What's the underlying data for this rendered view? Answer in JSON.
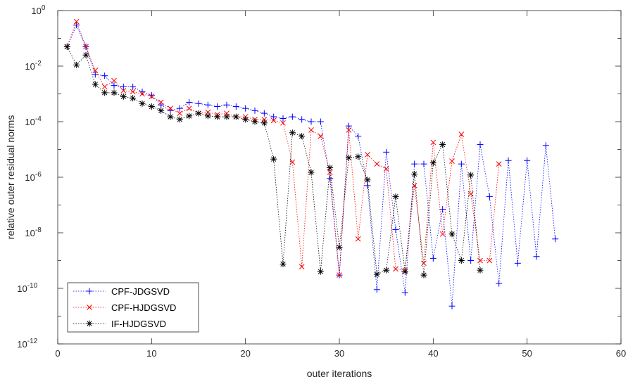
{
  "chart_data": {
    "type": "line",
    "xlabel": "outer iterations",
    "ylabel": "relative outer residual norms",
    "xlim": [
      0,
      60
    ],
    "ylim": [
      1e-12,
      1
    ],
    "yscale": "log",
    "xticks": [
      0,
      10,
      20,
      30,
      40,
      50,
      60
    ],
    "yticks": [
      {
        "value": 1e-12,
        "label": "10",
        "exp": "-12"
      },
      {
        "value": 1e-10,
        "label": "10",
        "exp": "-10"
      },
      {
        "value": 1e-08,
        "label": "10",
        "exp": "-8"
      },
      {
        "value": 1e-06,
        "label": "10",
        "exp": "-6"
      },
      {
        "value": 0.0001,
        "label": "10",
        "exp": "-4"
      },
      {
        "value": 0.01,
        "label": "10",
        "exp": "-2"
      },
      {
        "value": 1,
        "label": "10",
        "exp": "0"
      }
    ],
    "grid": false,
    "legend_position": "bottom-left",
    "series": [
      {
        "name": "CPF-JDGSVD",
        "color": "#0000ff",
        "marker": "plus",
        "x": [
          1,
          2,
          3,
          4,
          5,
          6,
          7,
          8,
          9,
          10,
          11,
          12,
          13,
          14,
          15,
          16,
          17,
          18,
          19,
          20,
          21,
          22,
          23,
          24,
          25,
          26,
          27,
          28,
          29,
          30,
          31,
          32,
          33,
          34,
          35,
          36,
          37,
          38,
          39,
          40,
          41,
          42,
          43,
          44,
          45,
          46,
          47,
          48,
          49,
          50,
          51,
          52,
          53
        ],
        "y": [
          0.05,
          0.3,
          0.05,
          0.005,
          0.0045,
          0.002,
          0.0018,
          0.0018,
          0.0012,
          0.0009,
          0.0004,
          0.00025,
          0.0003,
          0.0005,
          0.00045,
          0.0004,
          0.00035,
          0.0004,
          0.00035,
          0.0003,
          0.00025,
          0.0002,
          0.00015,
          0.00013,
          0.00015,
          0.00012,
          0.0001,
          0.0001,
          9e-07,
          3e-10,
          7e-05,
          3e-05,
          5e-07,
          9e-11,
          8e-06,
          1.3e-08,
          7e-11,
          3e-06,
          3e-06,
          1.2e-09,
          7e-08,
          2.3e-11,
          3e-06,
          1e-09,
          1.5e-05,
          2e-07,
          1.5e-10,
          4e-06,
          8e-10,
          4e-06,
          1.4e-09,
          1.4e-05,
          6e-09
        ]
      },
      {
        "name": "CPF-HJDGSVD",
        "color": "#ff0000",
        "marker": "x",
        "x": [
          1,
          2,
          3,
          4,
          5,
          6,
          7,
          8,
          9,
          10,
          11,
          12,
          13,
          14,
          15,
          16,
          17,
          18,
          19,
          20,
          21,
          22,
          23,
          24,
          25,
          26,
          27,
          28,
          29,
          30,
          31,
          32,
          33,
          34,
          35,
          36,
          37,
          38,
          39,
          40,
          41,
          42,
          43,
          44,
          45,
          46,
          47
        ],
        "y": [
          0.05,
          0.4,
          0.05,
          0.007,
          0.0018,
          0.003,
          0.0013,
          0.0012,
          0.001,
          0.0008,
          0.0005,
          0.0003,
          0.0002,
          0.0003,
          0.0002,
          0.00022,
          0.00018,
          0.0002,
          0.00015,
          0.00015,
          0.00012,
          0.00012,
          0.00011,
          9e-05,
          3.5e-06,
          6e-10,
          5e-05,
          3e-05,
          1.5e-06,
          3e-10,
          5e-05,
          6e-09,
          6.5e-06,
          3e-06,
          2e-06,
          5e-10,
          4.5e-10,
          5e-07,
          8e-10,
          1.8e-05,
          9e-09,
          3.8e-06,
          3.5e-05,
          2.5e-07,
          1e-09,
          1e-09,
          3e-06
        ]
      },
      {
        "name": "IF-HJDGSVD",
        "color": "#000000",
        "marker": "asterisk",
        "x": [
          1,
          2,
          3,
          4,
          5,
          6,
          7,
          8,
          9,
          10,
          11,
          12,
          13,
          14,
          15,
          16,
          17,
          18,
          19,
          20,
          21,
          22,
          23,
          24,
          25,
          26,
          27,
          28,
          29,
          30,
          31,
          32,
          33,
          34,
          35,
          36,
          37,
          38,
          39,
          40,
          41,
          42,
          43,
          44,
          45
        ],
        "y": [
          0.05,
          0.011,
          0.025,
          0.0022,
          0.0011,
          0.0011,
          0.0008,
          0.0007,
          0.00045,
          0.00035,
          0.00025,
          0.00015,
          0.00012,
          0.00016,
          0.0002,
          0.00016,
          0.00015,
          0.00015,
          0.00015,
          0.00012,
          0.0001,
          9e-05,
          4.5e-06,
          7.5e-10,
          4e-05,
          3e-05,
          1.5e-06,
          4e-10,
          2.2e-06,
          3e-09,
          5e-06,
          5.5e-06,
          8e-07,
          3.2e-10,
          4.5e-10,
          2e-07,
          4e-10,
          1.3e-06,
          3e-10,
          3.3e-06,
          1.5e-05,
          9e-09,
          1e-09,
          1.2e-06,
          4.5e-10
        ]
      }
    ]
  }
}
